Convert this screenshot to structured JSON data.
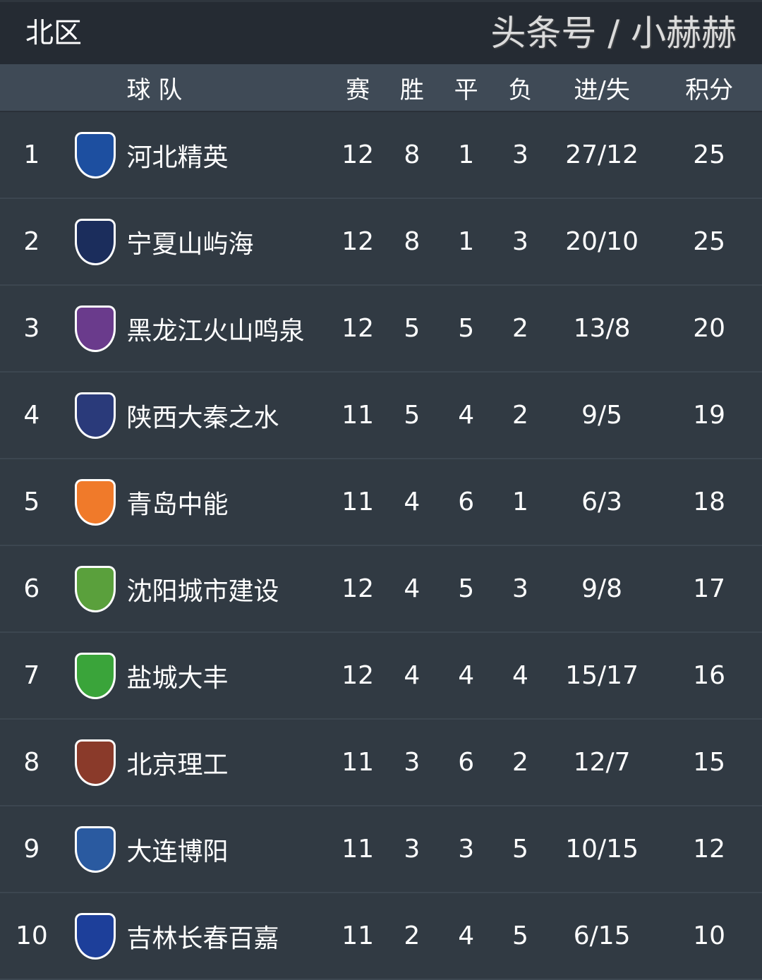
{
  "title": "北区",
  "headers": {
    "team": "球 队",
    "played": "赛",
    "won": "胜",
    "drawn": "平",
    "lost": "负",
    "goals": "进/失",
    "points": "积分"
  },
  "rows": [
    {
      "rank": "1",
      "team": "河北精英",
      "played": "12",
      "won": "8",
      "drawn": "1",
      "lost": "3",
      "goals": "27/12",
      "points": "25",
      "logo_color": "#1d4fa0"
    },
    {
      "rank": "2",
      "team": "宁夏山屿海",
      "played": "12",
      "won": "8",
      "drawn": "1",
      "lost": "3",
      "goals": "20/10",
      "points": "25",
      "logo_color": "#1b2d5c"
    },
    {
      "rank": "3",
      "team": "黑龙江火山鸣泉",
      "played": "12",
      "won": "5",
      "drawn": "5",
      "lost": "2",
      "goals": "13/8",
      "points": "20",
      "logo_color": "#6a3b8c"
    },
    {
      "rank": "4",
      "team": "陕西大秦之水",
      "played": "11",
      "won": "5",
      "drawn": "4",
      "lost": "2",
      "goals": "9/5",
      "points": "19",
      "logo_color": "#2a3a7a"
    },
    {
      "rank": "5",
      "team": "青岛中能",
      "played": "11",
      "won": "4",
      "drawn": "6",
      "lost": "1",
      "goals": "6/3",
      "points": "18",
      "logo_color": "#f07a2a"
    },
    {
      "rank": "6",
      "team": "沈阳城市建设",
      "played": "12",
      "won": "4",
      "drawn": "5",
      "lost": "3",
      "goals": "9/8",
      "points": "17",
      "logo_color": "#5aa03c"
    },
    {
      "rank": "7",
      "team": "盐城大丰",
      "played": "12",
      "won": "4",
      "drawn": "4",
      "lost": "4",
      "goals": "15/17",
      "points": "16",
      "logo_color": "#3aa43a"
    },
    {
      "rank": "8",
      "team": "北京理工",
      "played": "11",
      "won": "3",
      "drawn": "6",
      "lost": "2",
      "goals": "12/7",
      "points": "15",
      "logo_color": "#8a3a2a"
    },
    {
      "rank": "9",
      "team": "大连博阳",
      "played": "11",
      "won": "3",
      "drawn": "3",
      "lost": "5",
      "goals": "10/15",
      "points": "12",
      "logo_color": "#2a5aa0"
    },
    {
      "rank": "10",
      "team": "吉林长春百嘉",
      "played": "11",
      "won": "2",
      "drawn": "4",
      "lost": "5",
      "goals": "6/15",
      "points": "10",
      "logo_color": "#1d3f9a"
    }
  ],
  "watermark": "头条号 / 小赫赫"
}
